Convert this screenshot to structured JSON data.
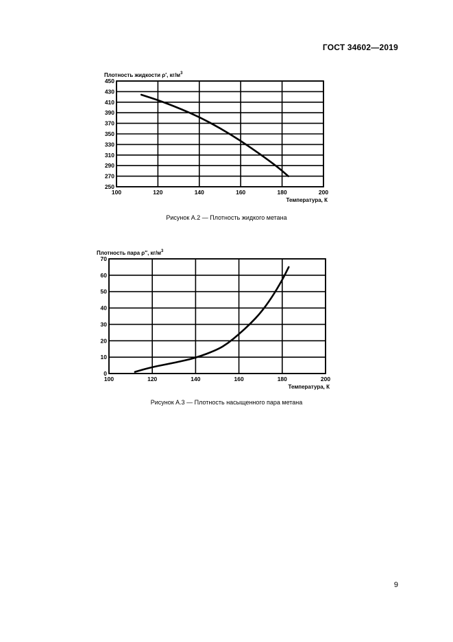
{
  "header": {
    "doc_id": "ГОСТ 34602—2019"
  },
  "page_number": "9",
  "figures": [
    {
      "caption": "Рисунок А.2 — Плотность жидкого метана",
      "chart_data": {
        "type": "line",
        "ylabel_main": "Плотность жидкости ρ′, кг/м",
        "ylabel_sup": "3",
        "xlabel": "Температура, К",
        "xlim": [
          100,
          200
        ],
        "ylim": [
          250,
          450
        ],
        "xticks": [
          "100",
          "120",
          "140",
          "160",
          "180",
          "200"
        ],
        "yticks": [
          "450",
          "430",
          "410",
          "390",
          "370",
          "350",
          "330",
          "310",
          "290",
          "270",
          "250"
        ],
        "grid": true,
        "series": [
          {
            "x": [
              112,
              120,
              130,
              140,
              150,
              160,
              170,
              178,
              183
            ],
            "y": [
              424,
              414,
              399,
              382,
              361,
              337,
              310,
              287,
              270
            ]
          }
        ]
      }
    },
    {
      "caption": "Рисунок А.3 — Плотность насыщенного пара метана",
      "chart_data": {
        "type": "line",
        "ylabel_main": "Плотность пара ρ″, кг/м",
        "ylabel_sup": "3",
        "xlabel": "Температура, К",
        "xlim": [
          100,
          200
        ],
        "ylim": [
          0,
          70
        ],
        "xticks": [
          "100",
          "120",
          "140",
          "160",
          "180",
          "200"
        ],
        "yticks": [
          "70",
          "60",
          "50",
          "40",
          "30",
          "20",
          "10",
          "0"
        ],
        "grid": true,
        "series": [
          {
            "x": [
              112,
              120,
              130,
              140,
              150,
              155,
              160,
              165,
              170,
              175,
              180,
              183
            ],
            "y": [
              1,
              4,
              6.5,
              9.5,
              14.5,
              18.5,
              24,
              30,
              37,
              46,
              57,
              65
            ]
          }
        ]
      }
    }
  ]
}
